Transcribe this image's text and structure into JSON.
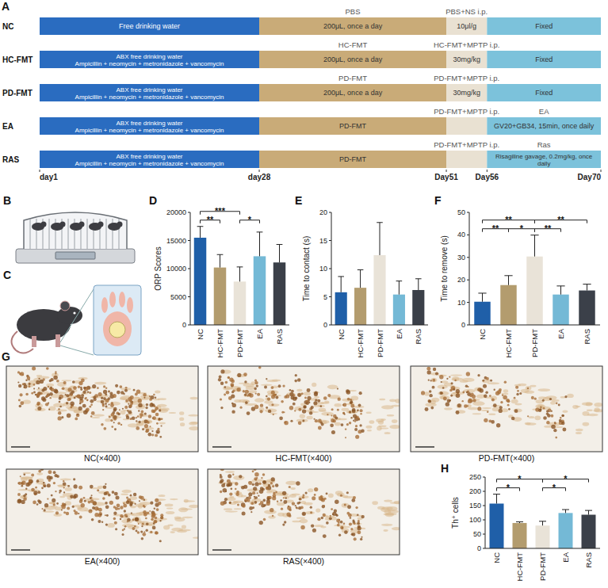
{
  "panels": [
    "A",
    "B",
    "C",
    "D",
    "E",
    "F",
    "G",
    "H"
  ],
  "timeline": {
    "days": [
      {
        "value": 1,
        "label": "day1"
      },
      {
        "value": 28,
        "label": "day28"
      },
      {
        "value": 51,
        "label": "Day51"
      },
      {
        "value": 56,
        "label": "Day56"
      },
      {
        "value": 70,
        "label": "Day70"
      }
    ],
    "phases": [
      {
        "from": 1,
        "to": 28,
        "color": "#2a6cc0"
      },
      {
        "from": 28,
        "to": 51,
        "color": "#c9ab78"
      },
      {
        "from": 51,
        "to": 56,
        "color": "#e9e1d2"
      },
      {
        "from": 56,
        "to": 70,
        "color": "#7cc2db"
      }
    ],
    "groups": [
      {
        "label": "NC",
        "segments": [
          {
            "inside": [
              "Free drinking water"
            ]
          },
          {
            "above": "PBS",
            "inside": [
              "200μL, once a day"
            ]
          },
          {
            "above": "PBS+NS i.p.",
            "inside": [
              "10μl/g"
            ]
          },
          {
            "inside": [
              "Fixed"
            ]
          }
        ]
      },
      {
        "label": "HC-FMT",
        "segments": [
          {
            "inside": [
              "ABX  free drinking water",
              "Ampicillin + neomycin + metronidazole + vancomycin"
            ]
          },
          {
            "above": "HC-FMT",
            "inside": [
              "200μL, once a day"
            ]
          },
          {
            "above": "HC-FMT+MPTP i.p.",
            "inside": [
              "30mg/kg"
            ]
          },
          {
            "inside": [
              "Fixed"
            ]
          }
        ]
      },
      {
        "label": "PD-FMT",
        "segments": [
          {
            "inside": [
              "ABX  free drinking water",
              "Ampicillin + neomycin + metronidazole + vancomycin"
            ]
          },
          {
            "above": "PD-FMT",
            "inside": [
              "200μL, once a day"
            ]
          },
          {
            "above": "PD-FMT+MPTP i.p.",
            "inside": [
              "30mg/kg"
            ]
          },
          {
            "inside": [
              "Fixed"
            ]
          }
        ]
      },
      {
        "label": "EA",
        "segments": [
          {
            "inside": [
              "ABX  free drinking water",
              "Ampicillin + neomycin + metronidazole + vancomycin"
            ]
          },
          {
            "inside": [
              "PD-FMT"
            ]
          },
          {
            "above": "PD-FMT+MPTP i.p."
          },
          {
            "above": "EA",
            "inside": [
              "GV20+GB34, 15min,  once daily"
            ]
          }
        ]
      },
      {
        "label": "RAS",
        "segments": [
          {
            "inside": [
              "ABX  free drinking water",
              "Ampicillin + neomycin + metronidazole + vancomycin"
            ]
          },
          {
            "inside": [
              "PD-FMT"
            ]
          },
          {
            "above": "PD-FMT+MPTP i.p."
          },
          {
            "above": "Ras",
            "inside": [
              "Risagiline gavage, 0.2mg/kg, once daily"
            ]
          }
        ]
      }
    ]
  },
  "chart_data": [
    {
      "type": "bar",
      "y_label": "ORP Scores",
      "categories": [
        "NC",
        "HC-FMT",
        "PD-FMT",
        "EA",
        "RAS"
      ],
      "values": [
        15500,
        10200,
        7700,
        12200,
        11100
      ],
      "errors": [
        2000,
        2300,
        2600,
        4300,
        3200
      ],
      "colors": [
        "#1f5fa8",
        "#b39c6e",
        "#e9e3d8",
        "#74b9d6",
        "#3b4049"
      ],
      "ylim": [
        0,
        20000
      ],
      "yticks": [
        0,
        5000,
        10000,
        15000,
        20000
      ],
      "significance": [
        {
          "between": [
            "NC",
            "HC-FMT"
          ],
          "text": "**"
        },
        {
          "between": [
            "NC",
            "PD-FMT"
          ],
          "text": "***"
        },
        {
          "between": [
            "PD-FMT",
            "EA"
          ],
          "text": "*"
        }
      ]
    },
    {
      "type": "bar",
      "y_label": "Time to contact (s)",
      "categories": [
        "NC",
        "HC-FMT",
        "PD-FMT",
        "EA",
        "RAS"
      ],
      "values": [
        5.8,
        6.6,
        12.4,
        5.4,
        6.2
      ],
      "errors": [
        2.8,
        3.2,
        5.8,
        2.4,
        2.0
      ],
      "colors": [
        "#1f5fa8",
        "#b39c6e",
        "#e9e3d8",
        "#74b9d6",
        "#3b4049"
      ],
      "ylim": [
        0,
        20
      ],
      "yticks": [
        0,
        5,
        10,
        15,
        20
      ],
      "significance": []
    },
    {
      "type": "bar",
      "y_label": "Time to remove (s)",
      "categories": [
        "NC",
        "HC-FMT",
        "PD-FMT",
        "EA",
        "RAS"
      ],
      "values": [
        10.3,
        17.7,
        30.4,
        13.5,
        15.3
      ],
      "errors": [
        3.8,
        4.2,
        9.5,
        3.8,
        2.8
      ],
      "colors": [
        "#1f5fa8",
        "#b39c6e",
        "#e9e3d8",
        "#74b9d6",
        "#3b4049"
      ],
      "ylim": [
        0,
        50
      ],
      "yticks": [
        0,
        10,
        20,
        30,
        40,
        50
      ],
      "significance": [
        {
          "between": [
            "NC",
            "HC-FMT"
          ],
          "text": "**"
        },
        {
          "between": [
            "HC-FMT",
            "PD-FMT"
          ],
          "text": "*"
        },
        {
          "between": [
            "PD-FMT",
            "EA"
          ],
          "text": "**"
        },
        {
          "between": [
            "NC",
            "PD-FMT"
          ],
          "text": "**"
        },
        {
          "between": [
            "PD-FMT",
            "RAS"
          ],
          "text": "**"
        }
      ]
    },
    {
      "type": "bar",
      "y_label": "Th⁺ cells",
      "categories": [
        "NC",
        "HC-FMT",
        "PD-FMT",
        "EA",
        "RAS"
      ],
      "values": [
        157,
        89,
        80,
        124,
        118
      ],
      "errors": [
        33,
        4,
        15,
        12,
        15
      ],
      "colors": [
        "#1f5fa8",
        "#b39c6e",
        "#e9e3d8",
        "#74b9d6",
        "#3b4049"
      ],
      "ylim": [
        0,
        250
      ],
      "yticks": [
        0,
        50,
        100,
        150,
        200,
        250
      ],
      "significance": [
        {
          "between": [
            "NC",
            "HC-FMT"
          ],
          "text": "*"
        },
        {
          "between": [
            "NC",
            "PD-FMT"
          ],
          "text": "*"
        },
        {
          "between": [
            "PD-FMT",
            "EA"
          ],
          "text": "*"
        },
        {
          "between": [
            "PD-FMT",
            "RAS"
          ],
          "text": "*"
        }
      ]
    }
  ],
  "images": [
    {
      "label": "NC(×400)"
    },
    {
      "label": "HC-FMT(×400)"
    },
    {
      "label": "PD-FMT(×400)"
    },
    {
      "label": "EA(×400)"
    },
    {
      "label": "RAS(×400)"
    }
  ]
}
